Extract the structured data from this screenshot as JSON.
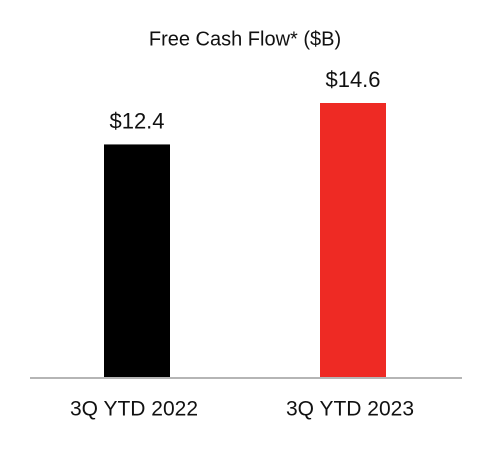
{
  "chart_data": {
    "type": "bar",
    "title": "Free Cash Flow* ($B)",
    "categories": [
      "3Q YTD 2022",
      "3Q YTD 2023"
    ],
    "values": [
      12.4,
      14.6
    ],
    "value_labels": [
      "$12.4",
      "$14.6"
    ],
    "colors": [
      "#000000",
      "#ee2a24"
    ]
  }
}
